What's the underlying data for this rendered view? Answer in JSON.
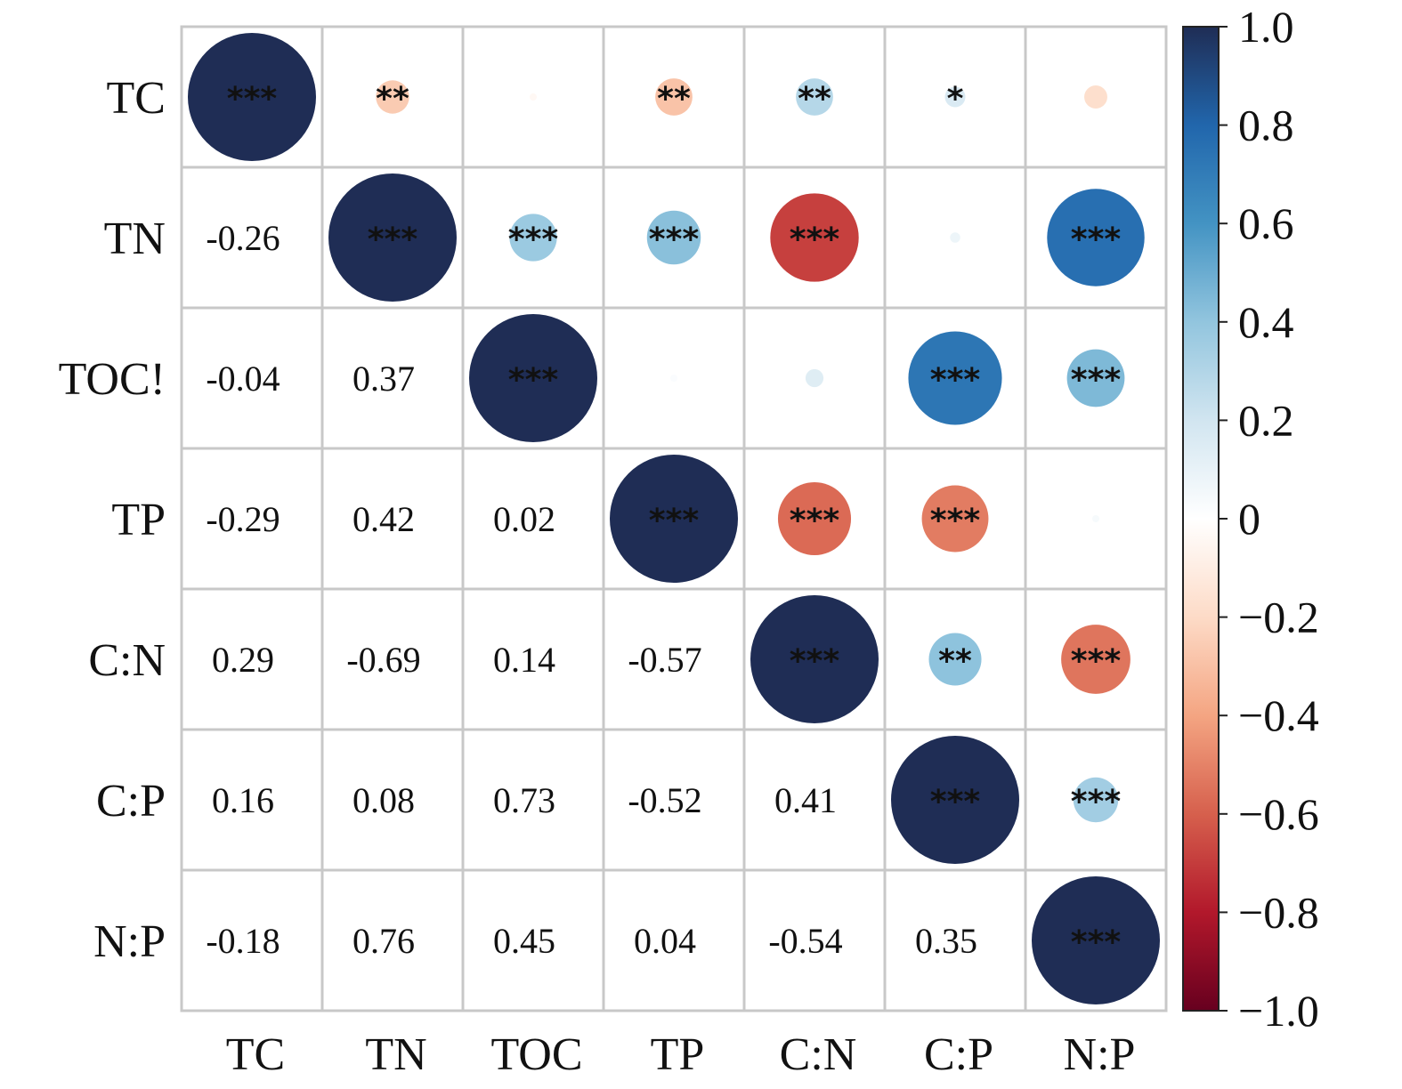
{
  "chart_data": {
    "type": "heatmap",
    "variables": [
      "TC",
      "TN",
      "TOC",
      "TP",
      "C:N",
      "C:P",
      "N:P"
    ],
    "row_labels": [
      "TC",
      "TN",
      "TOC!",
      "TP",
      "C:N",
      "C:P",
      "N:P"
    ],
    "col_labels": [
      "TC",
      "TN",
      "TOC",
      "TP",
      "C:N",
      "C:P",
      "N:P"
    ],
    "correlations": [
      [
        1.0,
        -0.26,
        -0.04,
        -0.29,
        0.29,
        0.16,
        -0.18
      ],
      [
        -0.26,
        1.0,
        0.37,
        0.42,
        -0.69,
        0.08,
        0.76
      ],
      [
        -0.04,
        0.37,
        1.0,
        0.02,
        0.14,
        0.73,
        0.45
      ],
      [
        -0.29,
        0.42,
        0.02,
        1.0,
        -0.57,
        -0.52,
        0.04
      ],
      [
        0.29,
        -0.69,
        0.14,
        -0.57,
        1.0,
        0.41,
        -0.54
      ],
      [
        0.16,
        0.08,
        0.73,
        -0.52,
        0.41,
        1.0,
        0.35
      ],
      [
        -0.18,
        0.76,
        0.45,
        0.04,
        -0.54,
        0.35,
        1.0
      ]
    ],
    "value_labels": [
      [
        "",
        "",
        "",
        "",
        "",
        "",
        ""
      ],
      [
        "-0.26",
        "",
        "",
        "",
        "",
        "",
        ""
      ],
      [
        "-0.04",
        "0.37",
        "",
        "",
        "",
        "",
        ""
      ],
      [
        "-0.29",
        "0.42",
        "0.02",
        "",
        "",
        "",
        ""
      ],
      [
        "0.29",
        "-0.69",
        "0.14",
        "-0.57",
        "",
        "",
        ""
      ],
      [
        "0.16",
        "0.08",
        "0.73",
        "-0.52",
        "0.41",
        "",
        ""
      ],
      [
        "-0.18",
        "0.76",
        "0.45",
        "0.04",
        "-0.54",
        "0.35",
        ""
      ]
    ],
    "significance": [
      [
        "***",
        "**",
        "",
        "**",
        "**",
        "*",
        ""
      ],
      [
        "**",
        "***",
        "***",
        "***",
        "***",
        "",
        "***"
      ],
      [
        "",
        "***",
        "***",
        "",
        "",
        "***",
        "***"
      ],
      [
        "**",
        "***",
        "",
        "***",
        "***",
        "***",
        ""
      ],
      [
        "**",
        "***",
        "",
        "***",
        "***",
        "**",
        "***"
      ],
      [
        "*",
        "",
        "***",
        "***",
        "**",
        "***",
        "***"
      ],
      [
        "",
        "***",
        "***",
        "",
        "***",
        "***",
        "***"
      ]
    ],
    "upper_triangle": "circles",
    "lower_triangle": "numbers",
    "colorbar": {
      "range": [
        -1.0,
        1.0
      ],
      "ticks": [
        "1.0",
        "0.8",
        "0.6",
        "0.4",
        "0.2",
        "0",
        "−0.2",
        "−0.4",
        "−0.6",
        "−0.8",
        "−1.0"
      ],
      "colors": [
        "#67001f",
        "#b2182b",
        "#d6604d",
        "#f4a582",
        "#fddbc7",
        "#ffffff",
        "#d1e5f0",
        "#92c5de",
        "#4393c3",
        "#2166ac",
        "#1f2d55"
      ]
    },
    "grid": true,
    "legend": "right"
  }
}
